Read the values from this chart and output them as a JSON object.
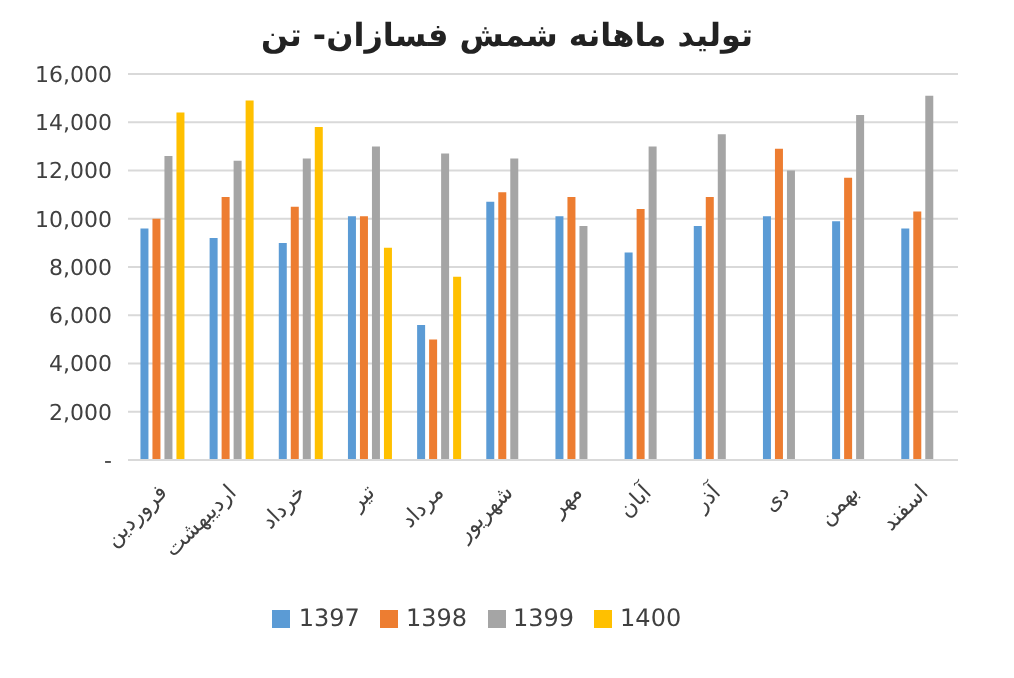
{
  "chart_data": {
    "type": "bar",
    "title": "تولید ماهانه شمش فسازان- تن",
    "categories": [
      "فروردین",
      "اردیبهشت",
      "خرداد",
      "تیر",
      "مرداد",
      "شهریور",
      "مهر",
      "آبان",
      "آذر",
      "دی",
      "بهمن",
      "اسفند"
    ],
    "series": [
      {
        "name": "1397",
        "color": "#5b9bd5",
        "values": [
          9600,
          9200,
          9000,
          10100,
          5600,
          10700,
          10100,
          8600,
          9700,
          10100,
          9900,
          9600
        ]
      },
      {
        "name": "1398",
        "color": "#ed7d31",
        "values": [
          10000,
          10900,
          10500,
          10100,
          5000,
          11100,
          10900,
          10400,
          10900,
          12900,
          11700,
          10300
        ]
      },
      {
        "name": "1399",
        "color": "#a5a5a5",
        "values": [
          12600,
          12400,
          12500,
          13000,
          12700,
          12500,
          9700,
          13000,
          13500,
          12000,
          14300,
          15100
        ]
      },
      {
        "name": "1400",
        "color": "#ffc000",
        "values": [
          14400,
          14900,
          13800,
          8800,
          7600,
          null,
          null,
          null,
          null,
          null,
          null,
          null
        ]
      }
    ],
    "ylim": [
      0,
      16000
    ],
    "yticks": [
      {
        "value": 0,
        "label": "-"
      },
      {
        "value": 2000,
        "label": "2,000"
      },
      {
        "value": 4000,
        "label": "4,000"
      },
      {
        "value": 6000,
        "label": "6,000"
      },
      {
        "value": 8000,
        "label": "8,000"
      },
      {
        "value": 10000,
        "label": "10,000"
      },
      {
        "value": 12000,
        "label": "12,000"
      },
      {
        "value": 14000,
        "label": "14,000"
      },
      {
        "value": 16000,
        "label": "16,000"
      }
    ],
    "grid": "y",
    "legend": "bottom"
  }
}
